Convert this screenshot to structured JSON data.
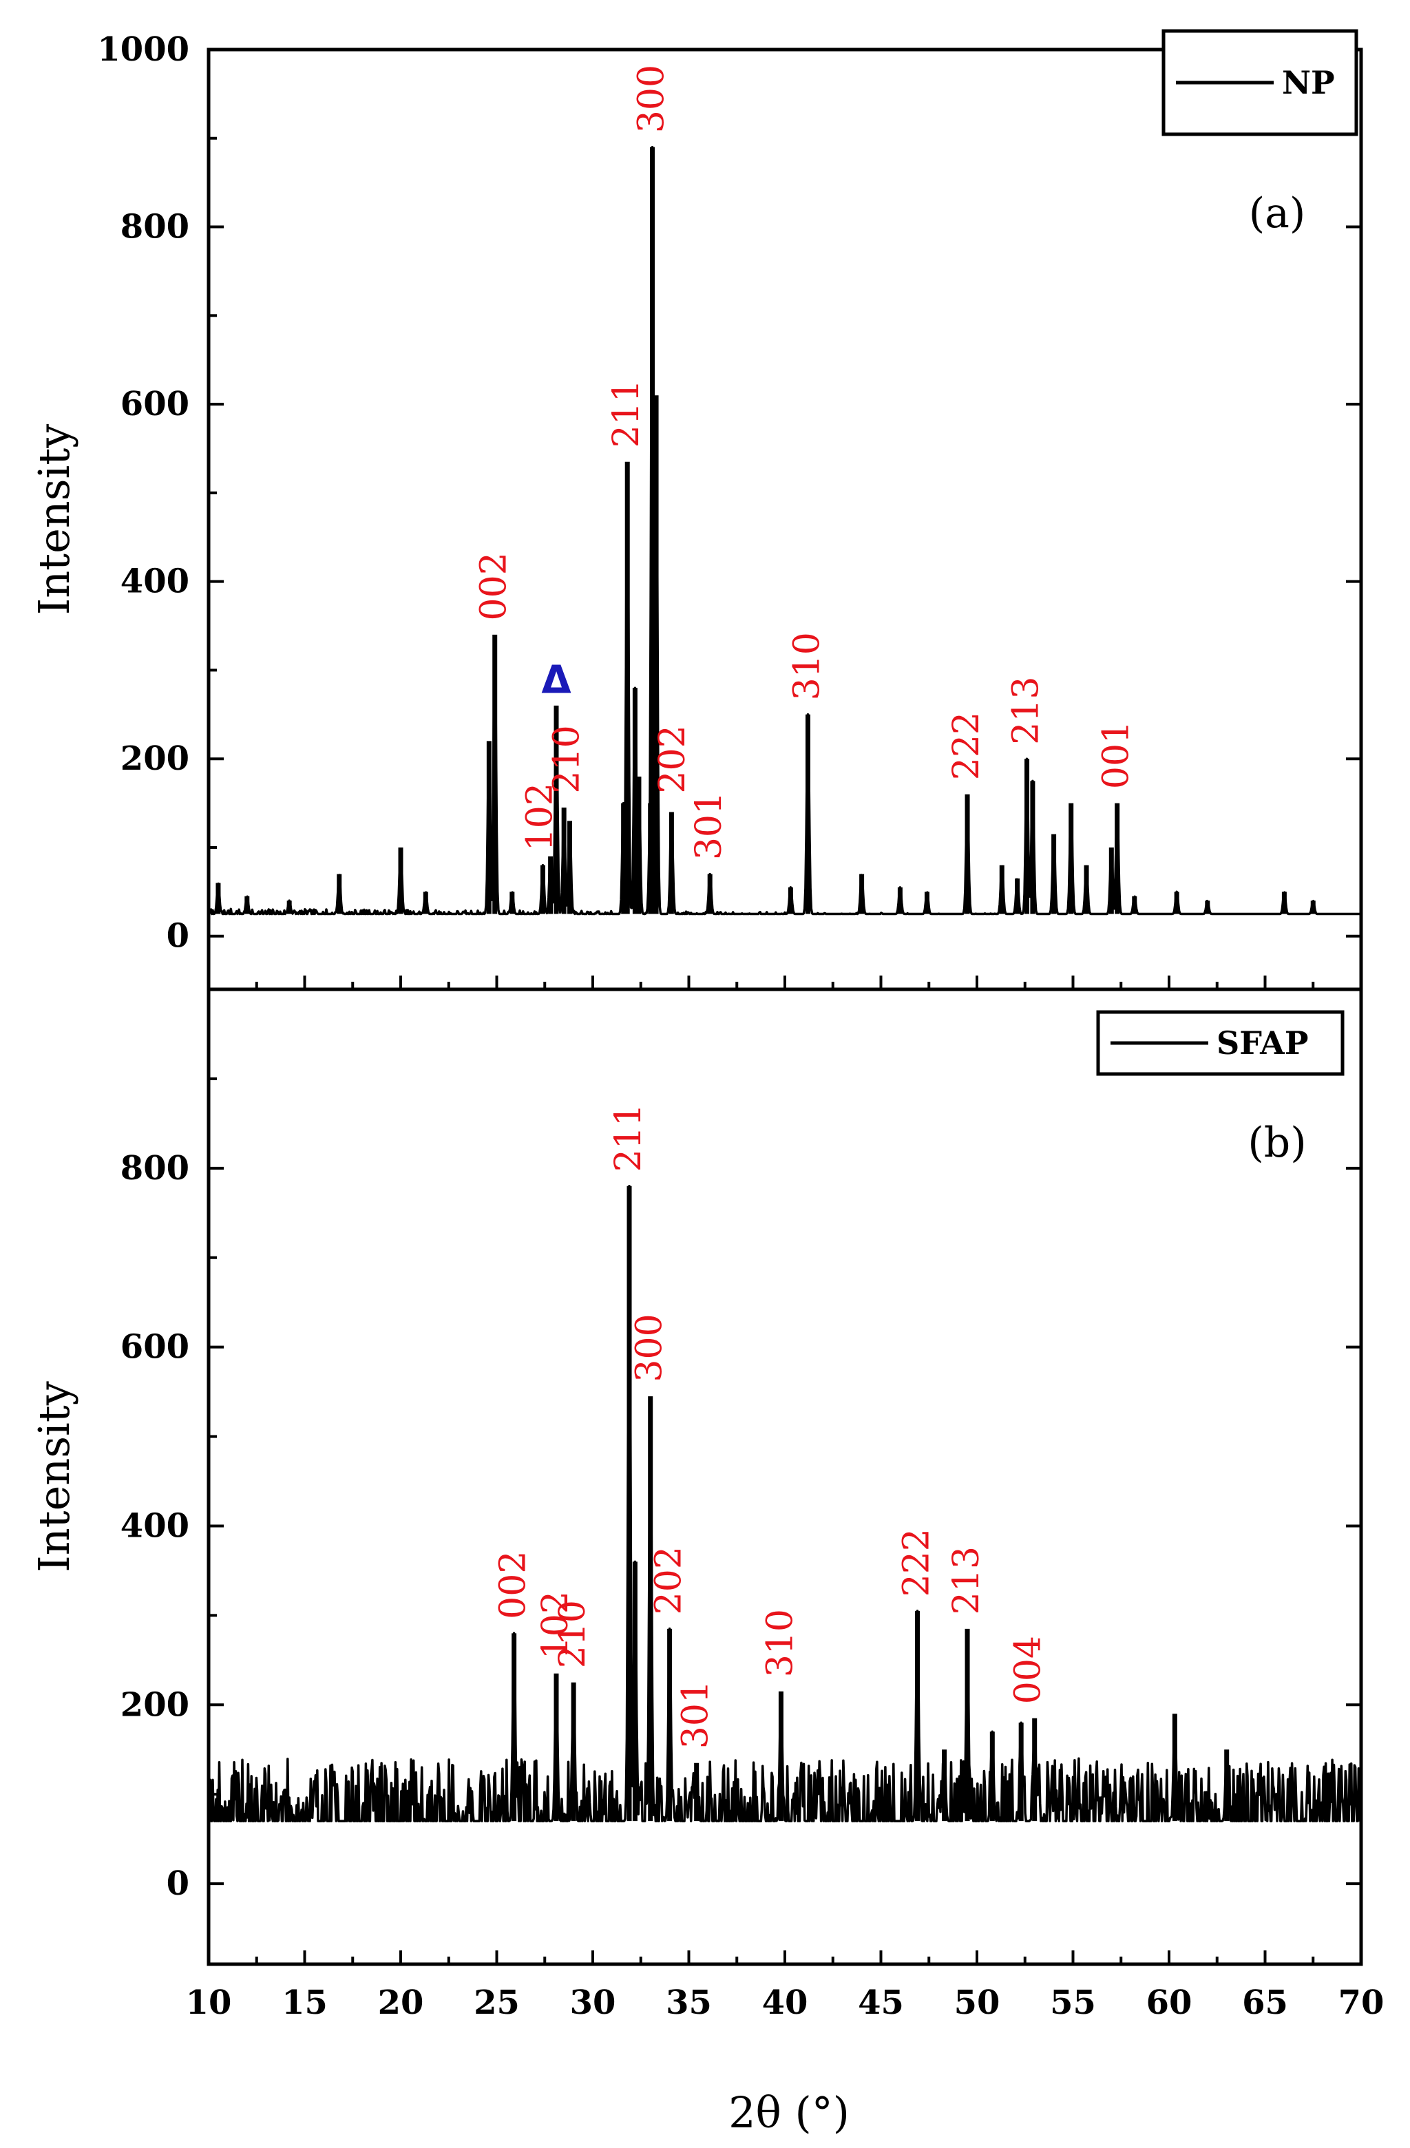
{
  "chart_data": [
    {
      "type": "line",
      "panel": "(a)",
      "legend": "NP",
      "xlabel": "2θ (°)",
      "ylabel": "Intensity",
      "xlim": [
        10,
        70
      ],
      "ylim": [
        -60,
        1000
      ],
      "yticks": [
        0,
        200,
        400,
        600,
        800,
        1000
      ],
      "xticks": [
        10,
        15,
        20,
        25,
        30,
        35,
        40,
        45,
        50,
        55,
        60,
        65,
        70
      ],
      "baseline": 25,
      "peaks": [
        {
          "x": 10.5,
          "y": 60
        },
        {
          "x": 12.0,
          "y": 45
        },
        {
          "x": 14.2,
          "y": 40
        },
        {
          "x": 16.8,
          "y": 70
        },
        {
          "x": 20.0,
          "y": 100
        },
        {
          "x": 21.3,
          "y": 50
        },
        {
          "x": 24.6,
          "y": 220
        },
        {
          "x": 24.9,
          "y": 340
        },
        {
          "x": 25.8,
          "y": 50
        },
        {
          "x": 27.4,
          "y": 80
        },
        {
          "x": 27.8,
          "y": 90
        },
        {
          "x": 28.1,
          "y": 260
        },
        {
          "x": 28.5,
          "y": 145
        },
        {
          "x": 28.8,
          "y": 130
        },
        {
          "x": 31.6,
          "y": 150
        },
        {
          "x": 31.8,
          "y": 535
        },
        {
          "x": 32.2,
          "y": 280
        },
        {
          "x": 32.4,
          "y": 180
        },
        {
          "x": 33.0,
          "y": 150
        },
        {
          "x": 33.1,
          "y": 890
        },
        {
          "x": 33.3,
          "y": 610
        },
        {
          "x": 34.1,
          "y": 140
        },
        {
          "x": 36.1,
          "y": 70
        },
        {
          "x": 40.3,
          "y": 55
        },
        {
          "x": 41.2,
          "y": 250
        },
        {
          "x": 44.0,
          "y": 70
        },
        {
          "x": 46.0,
          "y": 55
        },
        {
          "x": 47.4,
          "y": 50
        },
        {
          "x": 49.5,
          "y": 160
        },
        {
          "x": 51.3,
          "y": 80
        },
        {
          "x": 52.1,
          "y": 65
        },
        {
          "x": 52.6,
          "y": 200
        },
        {
          "x": 52.9,
          "y": 175
        },
        {
          "x": 54.0,
          "y": 115
        },
        {
          "x": 54.9,
          "y": 150
        },
        {
          "x": 55.7,
          "y": 80
        },
        {
          "x": 57.0,
          "y": 100
        },
        {
          "x": 57.3,
          "y": 150
        },
        {
          "x": 58.2,
          "y": 45
        },
        {
          "x": 60.4,
          "y": 50
        },
        {
          "x": 62.0,
          "y": 40
        },
        {
          "x": 66.0,
          "y": 50
        },
        {
          "x": 67.5,
          "y": 40
        }
      ],
      "annotations": [
        {
          "label": "002",
          "x": 24.9,
          "y": 345
        },
        {
          "label": "102",
          "x": 27.3,
          "y": 85
        },
        {
          "label": "210",
          "x": 28.7,
          "y": 150
        },
        {
          "label": "211",
          "x": 31.8,
          "y": 540
        },
        {
          "label": "300",
          "x": 33.1,
          "y": 895
        },
        {
          "label": "202",
          "x": 34.2,
          "y": 150
        },
        {
          "label": "301",
          "x": 36.1,
          "y": 75
        },
        {
          "label": "310",
          "x": 41.2,
          "y": 255
        },
        {
          "label": "222",
          "x": 49.5,
          "y": 165
        },
        {
          "label": "213",
          "x": 52.6,
          "y": 205
        },
        {
          "label": "001",
          "x": 57.3,
          "y": 155
        }
      ],
      "marker": {
        "symbol": "Δ",
        "x": 28.1,
        "y": 265
      }
    },
    {
      "type": "line",
      "panel": "(b)",
      "legend": "SFAP",
      "xlabel": "2θ (°)",
      "ylabel": "Intensity",
      "xlim": [
        10,
        70
      ],
      "ylim": [
        -90,
        1000
      ],
      "yticks": [
        0,
        200,
        400,
        600,
        800
      ],
      "xticks": [
        10,
        15,
        20,
        25,
        30,
        35,
        40,
        45,
        50,
        55,
        60,
        65,
        70
      ],
      "baseline": 70,
      "peaks": [
        {
          "x": 25.9,
          "y": 280
        },
        {
          "x": 28.1,
          "y": 235
        },
        {
          "x": 29.0,
          "y": 225
        },
        {
          "x": 31.9,
          "y": 780
        },
        {
          "x": 32.2,
          "y": 360
        },
        {
          "x": 33.0,
          "y": 545
        },
        {
          "x": 34.0,
          "y": 285
        },
        {
          "x": 35.4,
          "y": 135
        },
        {
          "x": 39.8,
          "y": 215
        },
        {
          "x": 46.9,
          "y": 305
        },
        {
          "x": 48.3,
          "y": 150
        },
        {
          "x": 49.5,
          "y": 285
        },
        {
          "x": 50.8,
          "y": 170
        },
        {
          "x": 52.3,
          "y": 180
        },
        {
          "x": 53.0,
          "y": 185
        },
        {
          "x": 60.3,
          "y": 190
        },
        {
          "x": 63.0,
          "y": 150
        }
      ],
      "annotations": [
        {
          "label": "002",
          "x": 25.9,
          "y": 285
        },
        {
          "label": "102",
          "x": 28.1,
          "y": 240
        },
        {
          "label": "210",
          "x": 29.0,
          "y": 230
        },
        {
          "label": "211",
          "x": 31.9,
          "y": 785
        },
        {
          "label": "300",
          "x": 33.0,
          "y": 550
        },
        {
          "label": "202",
          "x": 34.0,
          "y": 290
        },
        {
          "label": "301",
          "x": 35.4,
          "y": 140
        },
        {
          "label": "310",
          "x": 39.8,
          "y": 220
        },
        {
          "label": "222",
          "x": 46.9,
          "y": 310
        },
        {
          "label": "213",
          "x": 49.5,
          "y": 290
        },
        {
          "label": "004",
          "x": 52.7,
          "y": 190
        }
      ]
    }
  ]
}
